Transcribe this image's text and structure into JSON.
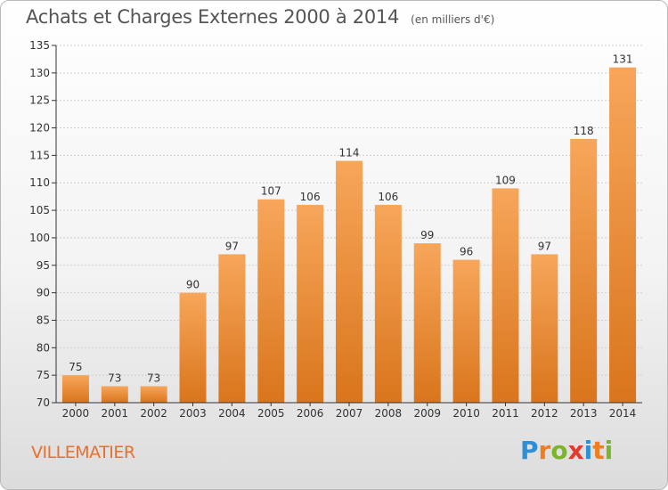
{
  "title": "Achats et Charges Externes 2000 à 2014",
  "subtitle": "(en milliers d'€)",
  "commune": "VILLEMATIER",
  "brand": {
    "letters": [
      "P",
      "r",
      "o",
      "x",
      "i",
      "t",
      "i"
    ],
    "colors": [
      "#2f8fd6",
      "#f07d1e",
      "#7ab52a",
      "#e23b2b",
      "#2f8fd6",
      "#f07d1e",
      "#7ab52a"
    ]
  },
  "colors": {
    "bar_top": "#f7a65a",
    "bar_bottom": "#d9751c",
    "axis": "#333333",
    "grid": "#cfcfcf",
    "label": "#333333"
  },
  "chart_data": {
    "type": "bar",
    "categories": [
      "2000",
      "2001",
      "2002",
      "2003",
      "2004",
      "2005",
      "2006",
      "2007",
      "2008",
      "2009",
      "2010",
      "2011",
      "2012",
      "2013",
      "2014"
    ],
    "values": [
      75,
      73,
      73,
      90,
      97,
      107,
      106,
      114,
      106,
      99,
      96,
      109,
      97,
      118,
      131
    ],
    "ylim": [
      70,
      135
    ],
    "yticks": [
      70,
      75,
      80,
      85,
      90,
      95,
      100,
      105,
      110,
      115,
      120,
      125,
      130,
      135
    ],
    "grid": true,
    "data_labels": true
  }
}
